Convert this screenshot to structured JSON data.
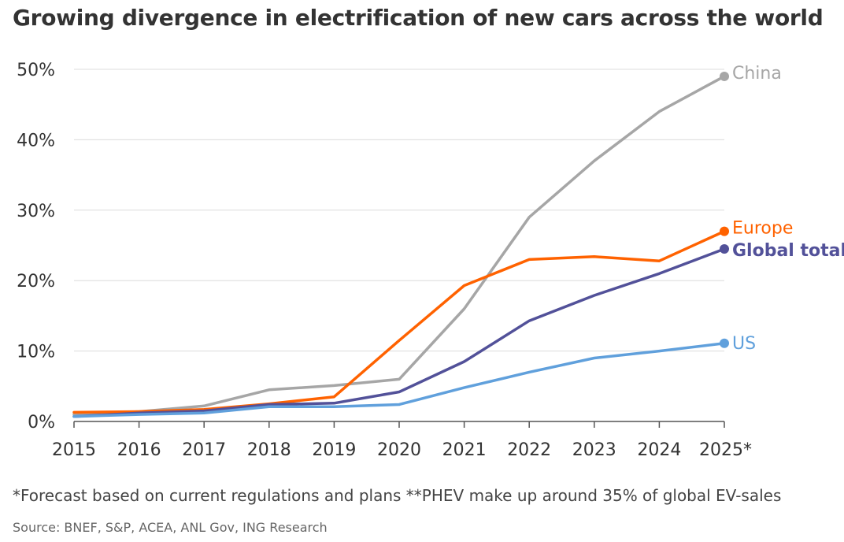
{
  "title": "Growing divergence in electrification of new cars across the world",
  "footnote": "*Forecast based on current regulations and plans **PHEV make up around 35% of global EV-sales",
  "source": "Source: BNEF, S&P, ACEA, ANL Gov, ING Research",
  "chart_data": {
    "type": "line",
    "x": [
      "2015",
      "2016",
      "2017",
      "2018",
      "2019",
      "2020",
      "2021",
      "2022",
      "2023",
      "2024",
      "2025*"
    ],
    "ylim": [
      0,
      50
    ],
    "yticks": [
      0,
      10,
      20,
      30,
      40,
      50
    ],
    "ytick_labels": [
      "0%",
      "10%",
      "20%",
      "30%",
      "40%",
      "50%"
    ],
    "grid": true,
    "legend": "direct labels at line ends",
    "xlabel": "",
    "ylabel": "",
    "series": [
      {
        "name": "China",
        "color": "#a6a6a6",
        "values": [
          1.0,
          1.4,
          2.2,
          4.5,
          5.1,
          6.0,
          16.0,
          29.0,
          37.0,
          44.0,
          49.0
        ]
      },
      {
        "name": "Europe",
        "color": "#ff6200",
        "values": [
          1.3,
          1.4,
          1.7,
          2.5,
          3.5,
          11.5,
          19.3,
          23.0,
          23.4,
          22.8,
          27.0
        ]
      },
      {
        "name": "Global total",
        "color": "#525199",
        "values": [
          0.7,
          1.2,
          1.5,
          2.4,
          2.6,
          4.2,
          8.5,
          14.3,
          17.9,
          21.0,
          24.5
        ]
      },
      {
        "name": "US",
        "color": "#60a0dc",
        "values": [
          0.7,
          1.0,
          1.2,
          2.1,
          2.1,
          2.4,
          4.8,
          7.0,
          9.0,
          10.0,
          11.1
        ]
      }
    ]
  }
}
